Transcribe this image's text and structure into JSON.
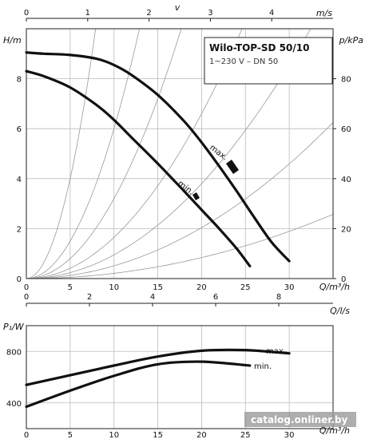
{
  "legend": {
    "title": "Wilo-TOP-SD 50/10",
    "subtitle": "1~230 V – DN 50"
  },
  "watermark": "catalog.onliner.by",
  "chart_data": [
    {
      "type": "line",
      "title": "Wilo-TOP-SD 50/10",
      "subtitle": "1~230 V – DN 50",
      "xlabel": "Q/m³/h",
      "ylabel": "H/m",
      "y2label": "p/kPa",
      "toplabel": "v",
      "toplabel_unit": "m/s",
      "xlim": [
        0,
        35
      ],
      "ylim": [
        0,
        10
      ],
      "y2lim": [
        0,
        100
      ],
      "toplim": [
        0,
        5
      ],
      "xticks": [
        "0",
        "5",
        "10",
        "15",
        "20",
        "25",
        "30"
      ],
      "yticks": [
        "0",
        "2",
        "4",
        "6",
        "8"
      ],
      "y2ticks": [
        "0",
        "20",
        "40",
        "60",
        "80"
      ],
      "topticks": [
        "0",
        "1",
        "2",
        "3",
        "4"
      ],
      "grid": true,
      "series": [
        {
          "name": "max.",
          "x": [
            0,
            2,
            5,
            8,
            10,
            12,
            15,
            18,
            20,
            22,
            24,
            26,
            28,
            30
          ],
          "y": [
            9.05,
            9.0,
            8.95,
            8.8,
            8.55,
            8.15,
            7.35,
            6.3,
            5.45,
            4.5,
            3.5,
            2.45,
            1.45,
            0.7
          ]
        },
        {
          "name": "min.",
          "x": [
            0,
            2,
            5,
            8,
            10,
            12,
            15,
            18,
            20,
            22,
            24,
            25.5
          ],
          "y": [
            8.3,
            8.1,
            7.65,
            6.95,
            6.35,
            5.65,
            4.6,
            3.5,
            2.75,
            2.0,
            1.2,
            0.5
          ]
        }
      ],
      "system_curves_k": [
        0.16,
        0.06,
        0.032,
        0.0165,
        0.0095,
        0.0051,
        0.0021
      ]
    },
    {
      "type": "line",
      "xlabel": "Q/m³/h",
      "ylabel": "P₁/W",
      "toplabel": "Q/l/s",
      "xlim": [
        0,
        35
      ],
      "ylim": [
        200,
        1000
      ],
      "toplim": [
        0,
        9.72
      ],
      "xticks": [
        "0",
        "5",
        "10",
        "15",
        "20",
        "25",
        "30"
      ],
      "yticks": [
        "400",
        "800"
      ],
      "topticks": [
        "0",
        "2",
        "4",
        "6",
        "8"
      ],
      "grid": true,
      "series": [
        {
          "name": "max.",
          "x": [
            0,
            5,
            10,
            15,
            20,
            25,
            30
          ],
          "y": [
            540,
            615,
            690,
            760,
            805,
            810,
            785
          ]
        },
        {
          "name": "min.",
          "x": [
            0,
            5,
            10,
            15,
            20,
            25.5
          ],
          "y": [
            370,
            495,
            610,
            700,
            720,
            690
          ]
        }
      ]
    }
  ]
}
